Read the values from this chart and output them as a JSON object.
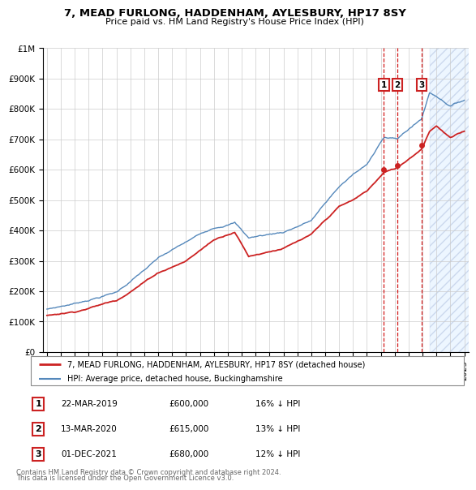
{
  "title1": "7, MEAD FURLONG, HADDENHAM, AYLESBURY, HP17 8SY",
  "title2": "Price paid vs. HM Land Registry's House Price Index (HPI)",
  "hpi_label": "HPI: Average price, detached house, Buckinghamshire",
  "property_label": "7, MEAD FURLONG, HADDENHAM, AYLESBURY, HP17 8SY (detached house)",
  "footer1": "Contains HM Land Registry data © Crown copyright and database right 2024.",
  "footer2": "This data is licensed under the Open Government Licence v3.0.",
  "sales": [
    {
      "num": 1,
      "date": "22-MAR-2019",
      "price": 600000,
      "pct": "16%",
      "x_year": 2019.22
    },
    {
      "num": 2,
      "date": "13-MAR-2020",
      "price": 615000,
      "pct": "13%",
      "x_year": 2020.19
    },
    {
      "num": 3,
      "date": "01-DEC-2021",
      "price": 680000,
      "pct": "12%",
      "x_year": 2021.92
    }
  ],
  "ylim": [
    0,
    1000000
  ],
  "yticks": [
    0,
    100000,
    200000,
    300000,
    400000,
    500000,
    600000,
    700000,
    800000,
    900000,
    1000000
  ],
  "ytick_labels": [
    "£0",
    "£100K",
    "£200K",
    "£300K",
    "£400K",
    "£500K",
    "£600K",
    "£700K",
    "£800K",
    "£900K",
    "£1M"
  ],
  "hpi_color": "#5588bb",
  "property_color": "#cc2222",
  "sale_marker_color": "#cc2222",
  "dashed_line_color": "#cc0000",
  "background_color": "#ffffff",
  "grid_color": "#cccccc",
  "legend_border_color": "#aaaaaa",
  "hatch_color": "#aabbdd",
  "xlim_start": 1994.7,
  "xlim_end": 2025.3,
  "hatch_start": 2022.5
}
